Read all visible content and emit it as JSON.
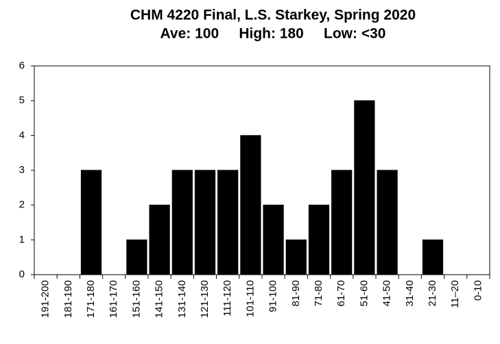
{
  "chart_data": {
    "type": "bar",
    "title": "CHM 4220 Final, L.S. Starkey, Spring 2020",
    "subtitle": "Ave: 100     High: 180     Low: <30",
    "categories": [
      "191-200",
      "181-190",
      "171-180",
      "161-170",
      "151-160",
      "141-150",
      "131-140",
      "121-130",
      "111-120",
      "101-110",
      "91-100",
      "81-90",
      "71-80",
      "61-70",
      "51-60",
      "41-50",
      "31-40",
      "21-30",
      "11–20",
      "0-10"
    ],
    "values": [
      0,
      0,
      3,
      0,
      1,
      2,
      3,
      3,
      3,
      4,
      2,
      1,
      2,
      3,
      5,
      3,
      0,
      1,
      0,
      0
    ],
    "color": "#000000",
    "ylim": [
      0,
      6
    ],
    "yticks": [
      0,
      1,
      2,
      3,
      4,
      5,
      6
    ],
    "grid": false
  }
}
